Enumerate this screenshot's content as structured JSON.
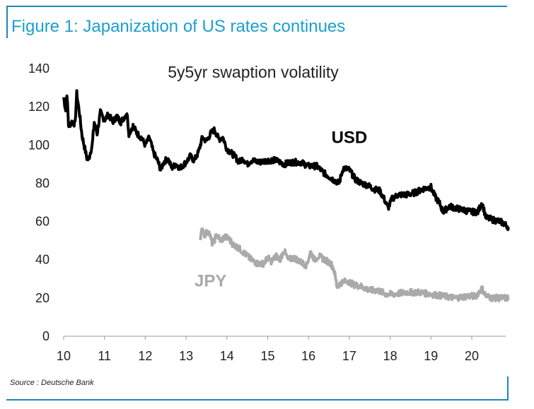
{
  "figure": {
    "title": "Figure 1: Japanization of US rates continues",
    "source": "Source : Deutsche Bank"
  },
  "chart_data": {
    "type": "line",
    "title": "5y5yr swaption volatility",
    "xlabel": "",
    "ylabel": "",
    "xlim": [
      10,
      20.9
    ],
    "ylim": [
      0,
      140
    ],
    "xticks": [
      "10",
      "11",
      "12",
      "13",
      "14",
      "15",
      "16",
      "17",
      "18",
      "19",
      "20"
    ],
    "yticks": [
      "0",
      "20",
      "40",
      "60",
      "80",
      "100",
      "120",
      "140"
    ],
    "grid": false,
    "series": [
      {
        "name": "USD",
        "color": "#000000",
        "points": [
          [
            10.0,
            125
          ],
          [
            10.05,
            118
          ],
          [
            10.08,
            127
          ],
          [
            10.12,
            110
          ],
          [
            10.2,
            112
          ],
          [
            10.28,
            111
          ],
          [
            10.32,
            127
          ],
          [
            10.38,
            118
          ],
          [
            10.45,
            105
          ],
          [
            10.52,
            98
          ],
          [
            10.58,
            92
          ],
          [
            10.63,
            94
          ],
          [
            10.7,
            100
          ],
          [
            10.75,
            112
          ],
          [
            10.82,
            106
          ],
          [
            10.9,
            117
          ],
          [
            11.0,
            113
          ],
          [
            11.1,
            116
          ],
          [
            11.2,
            112
          ],
          [
            11.3,
            115
          ],
          [
            11.4,
            112
          ],
          [
            11.5,
            115
          ],
          [
            11.55,
            117
          ],
          [
            11.6,
            106
          ],
          [
            11.7,
            110
          ],
          [
            11.8,
            106
          ],
          [
            11.9,
            104
          ],
          [
            12.0,
            100
          ],
          [
            12.1,
            104
          ],
          [
            12.2,
            96
          ],
          [
            12.3,
            92
          ],
          [
            12.38,
            87
          ],
          [
            12.45,
            91
          ],
          [
            12.55,
            93
          ],
          [
            12.65,
            88
          ],
          [
            12.75,
            90
          ],
          [
            12.85,
            88
          ],
          [
            13.0,
            91
          ],
          [
            13.1,
            94
          ],
          [
            13.2,
            92
          ],
          [
            13.3,
            96
          ],
          [
            13.4,
            104
          ],
          [
            13.5,
            102
          ],
          [
            13.6,
            106
          ],
          [
            13.7,
            108
          ],
          [
            13.8,
            103
          ],
          [
            13.9,
            104
          ],
          [
            14.0,
            98
          ],
          [
            14.1,
            96
          ],
          [
            14.2,
            94
          ],
          [
            14.3,
            91
          ],
          [
            14.4,
            93
          ],
          [
            14.5,
            90
          ],
          [
            14.6,
            92
          ],
          [
            14.8,
            91
          ],
          [
            15.0,
            92
          ],
          [
            15.2,
            92
          ],
          [
            15.4,
            90
          ],
          [
            15.6,
            91
          ],
          [
            15.8,
            91
          ],
          [
            16.0,
            89
          ],
          [
            16.2,
            89
          ],
          [
            16.4,
            85
          ],
          [
            16.6,
            82
          ],
          [
            16.75,
            80
          ],
          [
            16.85,
            88
          ],
          [
            17.0,
            87
          ],
          [
            17.15,
            82
          ],
          [
            17.3,
            80
          ],
          [
            17.45,
            79
          ],
          [
            17.6,
            77
          ],
          [
            17.75,
            76
          ],
          [
            17.85,
            72
          ],
          [
            17.95,
            67
          ],
          [
            18.05,
            72
          ],
          [
            18.2,
            74
          ],
          [
            18.4,
            74
          ],
          [
            18.6,
            75
          ],
          [
            18.8,
            77
          ],
          [
            19.0,
            78
          ],
          [
            19.1,
            73
          ],
          [
            19.2,
            70
          ],
          [
            19.3,
            65
          ],
          [
            19.45,
            68
          ],
          [
            19.6,
            67
          ],
          [
            19.8,
            66
          ],
          [
            20.0,
            65
          ],
          [
            20.15,
            65
          ],
          [
            20.25,
            70
          ],
          [
            20.35,
            62
          ],
          [
            20.5,
            61
          ],
          [
            20.7,
            60
          ],
          [
            20.85,
            58
          ],
          [
            20.9,
            57
          ]
        ]
      },
      {
        "name": "JPY",
        "color": "#aaaaaa",
        "points": [
          [
            13.35,
            50
          ],
          [
            13.4,
            57
          ],
          [
            13.45,
            53
          ],
          [
            13.55,
            55
          ],
          [
            13.65,
            48
          ],
          [
            13.75,
            53
          ],
          [
            13.85,
            50
          ],
          [
            13.95,
            52
          ],
          [
            14.05,
            51
          ],
          [
            14.15,
            48
          ],
          [
            14.3,
            46
          ],
          [
            14.45,
            43
          ],
          [
            14.6,
            40
          ],
          [
            14.75,
            38
          ],
          [
            14.9,
            38
          ],
          [
            15.0,
            41
          ],
          [
            15.1,
            39
          ],
          [
            15.2,
            42
          ],
          [
            15.3,
            40
          ],
          [
            15.4,
            45
          ],
          [
            15.5,
            40
          ],
          [
            15.65,
            41
          ],
          [
            15.8,
            39
          ],
          [
            15.95,
            37
          ],
          [
            16.05,
            44
          ],
          [
            16.15,
            40
          ],
          [
            16.25,
            42
          ],
          [
            16.4,
            40
          ],
          [
            16.55,
            38
          ],
          [
            16.62,
            35
          ],
          [
            16.7,
            26
          ],
          [
            16.8,
            28
          ],
          [
            16.95,
            29
          ],
          [
            17.1,
            27
          ],
          [
            17.3,
            26
          ],
          [
            17.5,
            24
          ],
          [
            17.7,
            24
          ],
          [
            17.9,
            22
          ],
          [
            18.1,
            22
          ],
          [
            18.4,
            23
          ],
          [
            18.7,
            23
          ],
          [
            19.0,
            22
          ],
          [
            19.3,
            21
          ],
          [
            19.6,
            20
          ],
          [
            19.9,
            21
          ],
          [
            20.1,
            21
          ],
          [
            20.25,
            25
          ],
          [
            20.35,
            21
          ],
          [
            20.5,
            20
          ],
          [
            20.7,
            20
          ],
          [
            20.9,
            20
          ]
        ]
      }
    ],
    "annotations": [
      {
        "text": "USD",
        "x": 17.0,
        "y": 101,
        "color": "#000000"
      },
      {
        "text": "JPY",
        "x": 13.6,
        "y": 26,
        "color": "#aaaaaa"
      }
    ]
  }
}
